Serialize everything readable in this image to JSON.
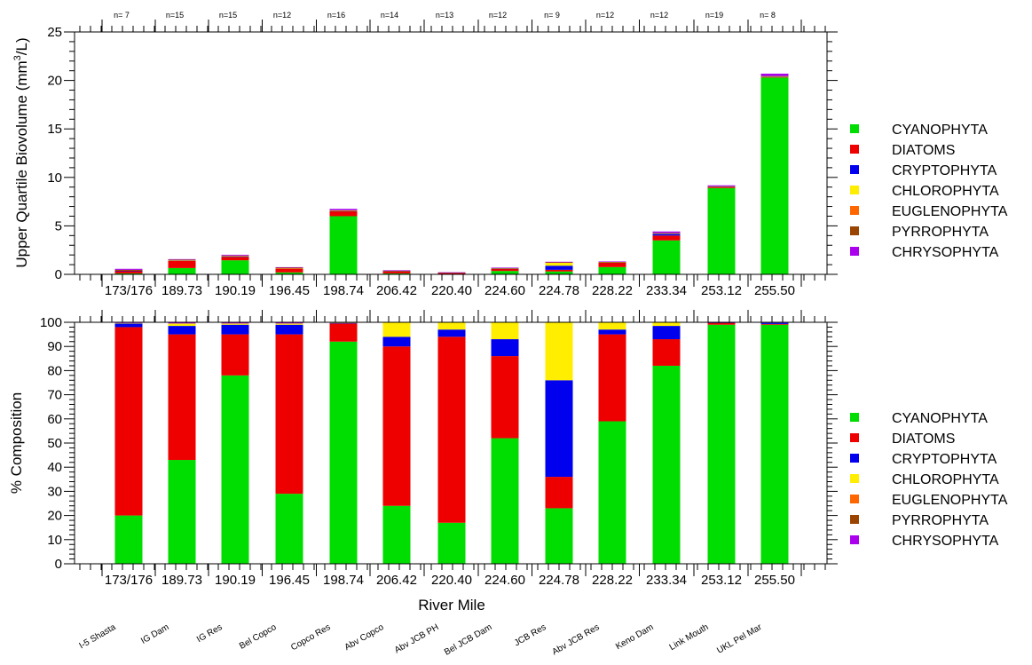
{
  "chart_data": [
    {
      "type": "bar",
      "stacked": true,
      "ylabel_main": "Upper Quartile Biovolume (mm",
      "ylabel_sup": "3",
      "ylabel_tail": "/L)",
      "ylim": [
        0,
        25
      ],
      "yticks": [
        "0",
        "5",
        "10",
        "15",
        "20",
        "25"
      ],
      "categories": [
        "173/176",
        "189.73",
        "190.19",
        "196.45",
        "198.74",
        "206.42",
        "220.40",
        "224.60",
        "224.78",
        "228.22",
        "233.34",
        "253.12",
        "255.50"
      ],
      "n_labels": [
        "n= 7",
        "n=15",
        "n=15",
        "n=12",
        "n=16",
        "n=14",
        "n=13",
        "n=12",
        "n= 9",
        "n=12",
        "n=12",
        "n=19",
        "n= 8"
      ],
      "series": [
        {
          "name": "CYANOPHYTA",
          "color": "#00dd00",
          "values": [
            0.1,
            0.65,
            1.45,
            0.2,
            6.0,
            0.1,
            0.03,
            0.35,
            0.3,
            0.75,
            3.5,
            8.9,
            20.3
          ]
        },
        {
          "name": "DIATOMS",
          "color": "#ee0000",
          "values": [
            0.25,
            0.75,
            0.35,
            0.4,
            0.5,
            0.22,
            0.13,
            0.2,
            0.17,
            0.45,
            0.5,
            0.12,
            0.07
          ]
        },
        {
          "name": "CRYPTOPHYTA",
          "color": "#0000ee",
          "values": [
            0.02,
            0.05,
            0.07,
            0.03,
            0.03,
            0.02,
            0.01,
            0.04,
            0.42,
            0.03,
            0.2,
            0.02,
            0.02
          ]
        },
        {
          "name": "CHLOROPHYTA",
          "color": "#ffee00",
          "values": [
            0.0,
            0.02,
            0.02,
            0.01,
            0.02,
            0.02,
            0.01,
            0.03,
            0.3,
            0.02,
            0.02,
            0.01,
            0.01
          ]
        },
        {
          "name": "EUGLENOPHYTA",
          "color": "#ff6600",
          "values": [
            0.0,
            0.0,
            0.0,
            0.0,
            0.0,
            0.0,
            0.0,
            0.0,
            0.0,
            0.0,
            0.0,
            0.0,
            0.0
          ]
        },
        {
          "name": "PYRROPHYTA",
          "color": "#994400",
          "values": [
            0.1,
            0.05,
            0.05,
            0.05,
            0.05,
            0.02,
            0.01,
            0.03,
            0.05,
            0.03,
            0.05,
            0.03,
            0.05
          ]
        },
        {
          "name": "CHRYSOPHYTA",
          "color": "#aa00ee",
          "values": [
            0.1,
            0.05,
            0.08,
            0.05,
            0.15,
            0.05,
            0.02,
            0.05,
            0.06,
            0.05,
            0.15,
            0.1,
            0.25
          ]
        }
      ]
    },
    {
      "type": "bar",
      "stacked": true,
      "ylabel": "% Composition",
      "xlabel": "River Mile",
      "ylim": [
        0,
        100
      ],
      "yticks": [
        "0",
        "10",
        "20",
        "30",
        "40",
        "50",
        "60",
        "70",
        "80",
        "90",
        "100"
      ],
      "categories": [
        "173/176",
        "189.73",
        "190.19",
        "196.45",
        "198.74",
        "206.42",
        "220.40",
        "224.60",
        "224.78",
        "228.22",
        "233.34",
        "253.12",
        "255.50"
      ],
      "site_names": [
        "I-5 Shasta",
        "IG Dam",
        "IG Res",
        "Bel Copco",
        "Copco Res",
        "Abv Copco",
        "Abv JCB PH",
        "Bel JCB Dam",
        "JCB Res",
        "Abv JCB Res",
        "Keno Dam",
        "Link Mouth",
        "UKL Pel Mar"
      ],
      "series": [
        {
          "name": "CYANOPHYTA",
          "color": "#00dd00",
          "values": [
            20,
            43,
            78,
            29,
            92,
            24,
            17,
            52,
            23,
            59,
            82,
            99,
            99
          ]
        },
        {
          "name": "DIATOMS",
          "color": "#ee0000",
          "values": [
            78,
            52,
            17,
            66,
            7.5,
            66,
            77,
            34,
            13,
            36,
            11,
            0.8,
            0.3
          ]
        },
        {
          "name": "CRYPTOPHYTA",
          "color": "#0000ee",
          "values": [
            1.5,
            3.5,
            4,
            4,
            0.3,
            4,
            3,
            7,
            40,
            2,
            5.5,
            0.1,
            0.5
          ]
        },
        {
          "name": "CHLOROPHYTA",
          "color": "#ffee00",
          "values": [
            0.2,
            1,
            0.5,
            0.5,
            0.1,
            6,
            3,
            7,
            24,
            3,
            1.5,
            0.1,
            0.2
          ]
        },
        {
          "name": "EUGLENOPHYTA",
          "color": "#ff6600",
          "values": [
            0,
            0,
            0,
            0,
            0,
            0,
            0,
            0,
            0,
            0,
            0,
            0,
            0
          ]
        },
        {
          "name": "PYRROPHYTA",
          "color": "#994400",
          "values": [
            0,
            0,
            0,
            0,
            0,
            0,
            0,
            0,
            0,
            0,
            0,
            0,
            0
          ]
        },
        {
          "name": "CHRYSOPHYTA",
          "color": "#aa00ee",
          "values": [
            0.3,
            0.5,
            0.5,
            0.5,
            0.1,
            0,
            0,
            0,
            0,
            0,
            0,
            0,
            0
          ]
        }
      ]
    }
  ]
}
